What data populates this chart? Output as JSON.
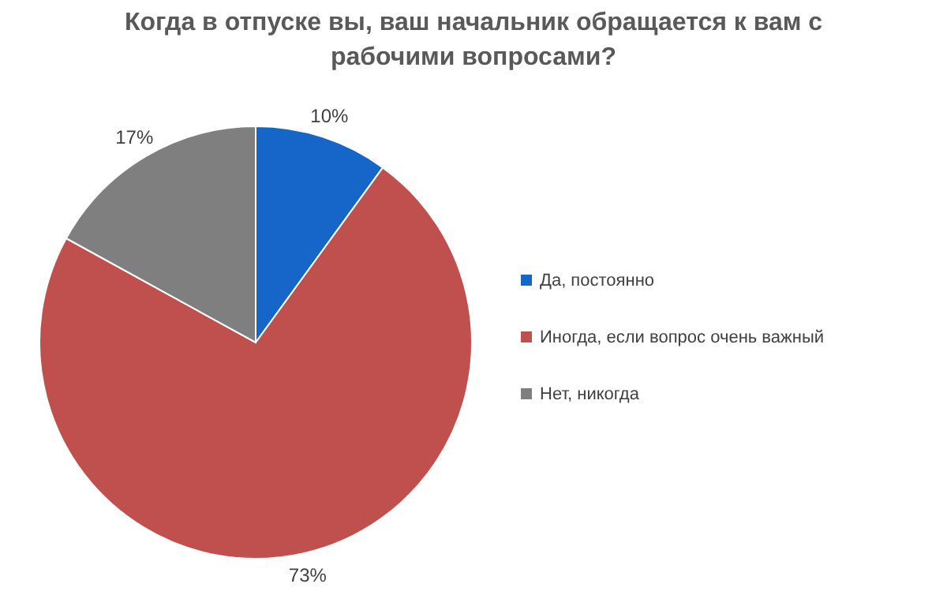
{
  "chart_data": {
    "type": "pie",
    "title": "Когда в отпуске вы, ваш начальник обращается к вам с рабочими вопросами?",
    "categories": [
      "Да, постоянно",
      "Иногда, если вопрос очень важный",
      "Нет, никогда"
    ],
    "values": [
      10,
      73,
      17
    ],
    "colors": [
      "#1665c8",
      "#c0504d",
      "#7f7f7f"
    ],
    "value_labels": [
      "10%",
      "73%",
      "17%"
    ],
    "legend": "right"
  }
}
